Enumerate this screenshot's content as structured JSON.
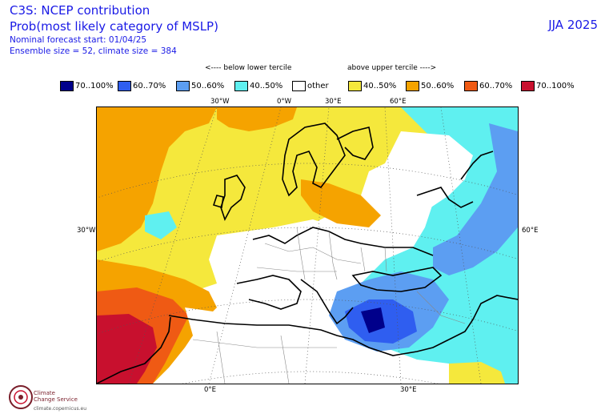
{
  "header": {
    "title": "C3S: NCEP contribution",
    "subtitle": "Prob(most likely category of MSLP)",
    "forecast_start": "Nominal forecast start: 01/04/25",
    "ensemble": "Ensemble size = 52, climate size = 384",
    "season": "JJA 2025"
  },
  "legend": {
    "below_label": "<---- below lower tercile",
    "above_label": "above upper tercile ---->",
    "items": [
      {
        "label": "70..100%",
        "color": "#00008b"
      },
      {
        "label": "60..70%",
        "color": "#2f5ef0"
      },
      {
        "label": "50..60%",
        "color": "#5c9ef2"
      },
      {
        "label": "40..50%",
        "color": "#5ff0f0"
      },
      {
        "label": "other",
        "color": "#ffffff"
      },
      {
        "label": "40..50%",
        "color": "#f5e83c"
      },
      {
        "label": "50..60%",
        "color": "#f5a300"
      },
      {
        "label": "60..70%",
        "color": "#ef5a14"
      },
      {
        "label": "70..100%",
        "color": "#c8102e"
      }
    ]
  },
  "map": {
    "top_ticks": [
      "30°W",
      "0°W",
      "30°E",
      "60°E"
    ],
    "bottom_ticks": [
      "0°E",
      "30°E"
    ],
    "left_tick": "30°W",
    "right_tick": "60°E"
  },
  "logo": {
    "line1": "Climate",
    "line2": "Change Service",
    "url": "climate.copernicus.eu"
  }
}
